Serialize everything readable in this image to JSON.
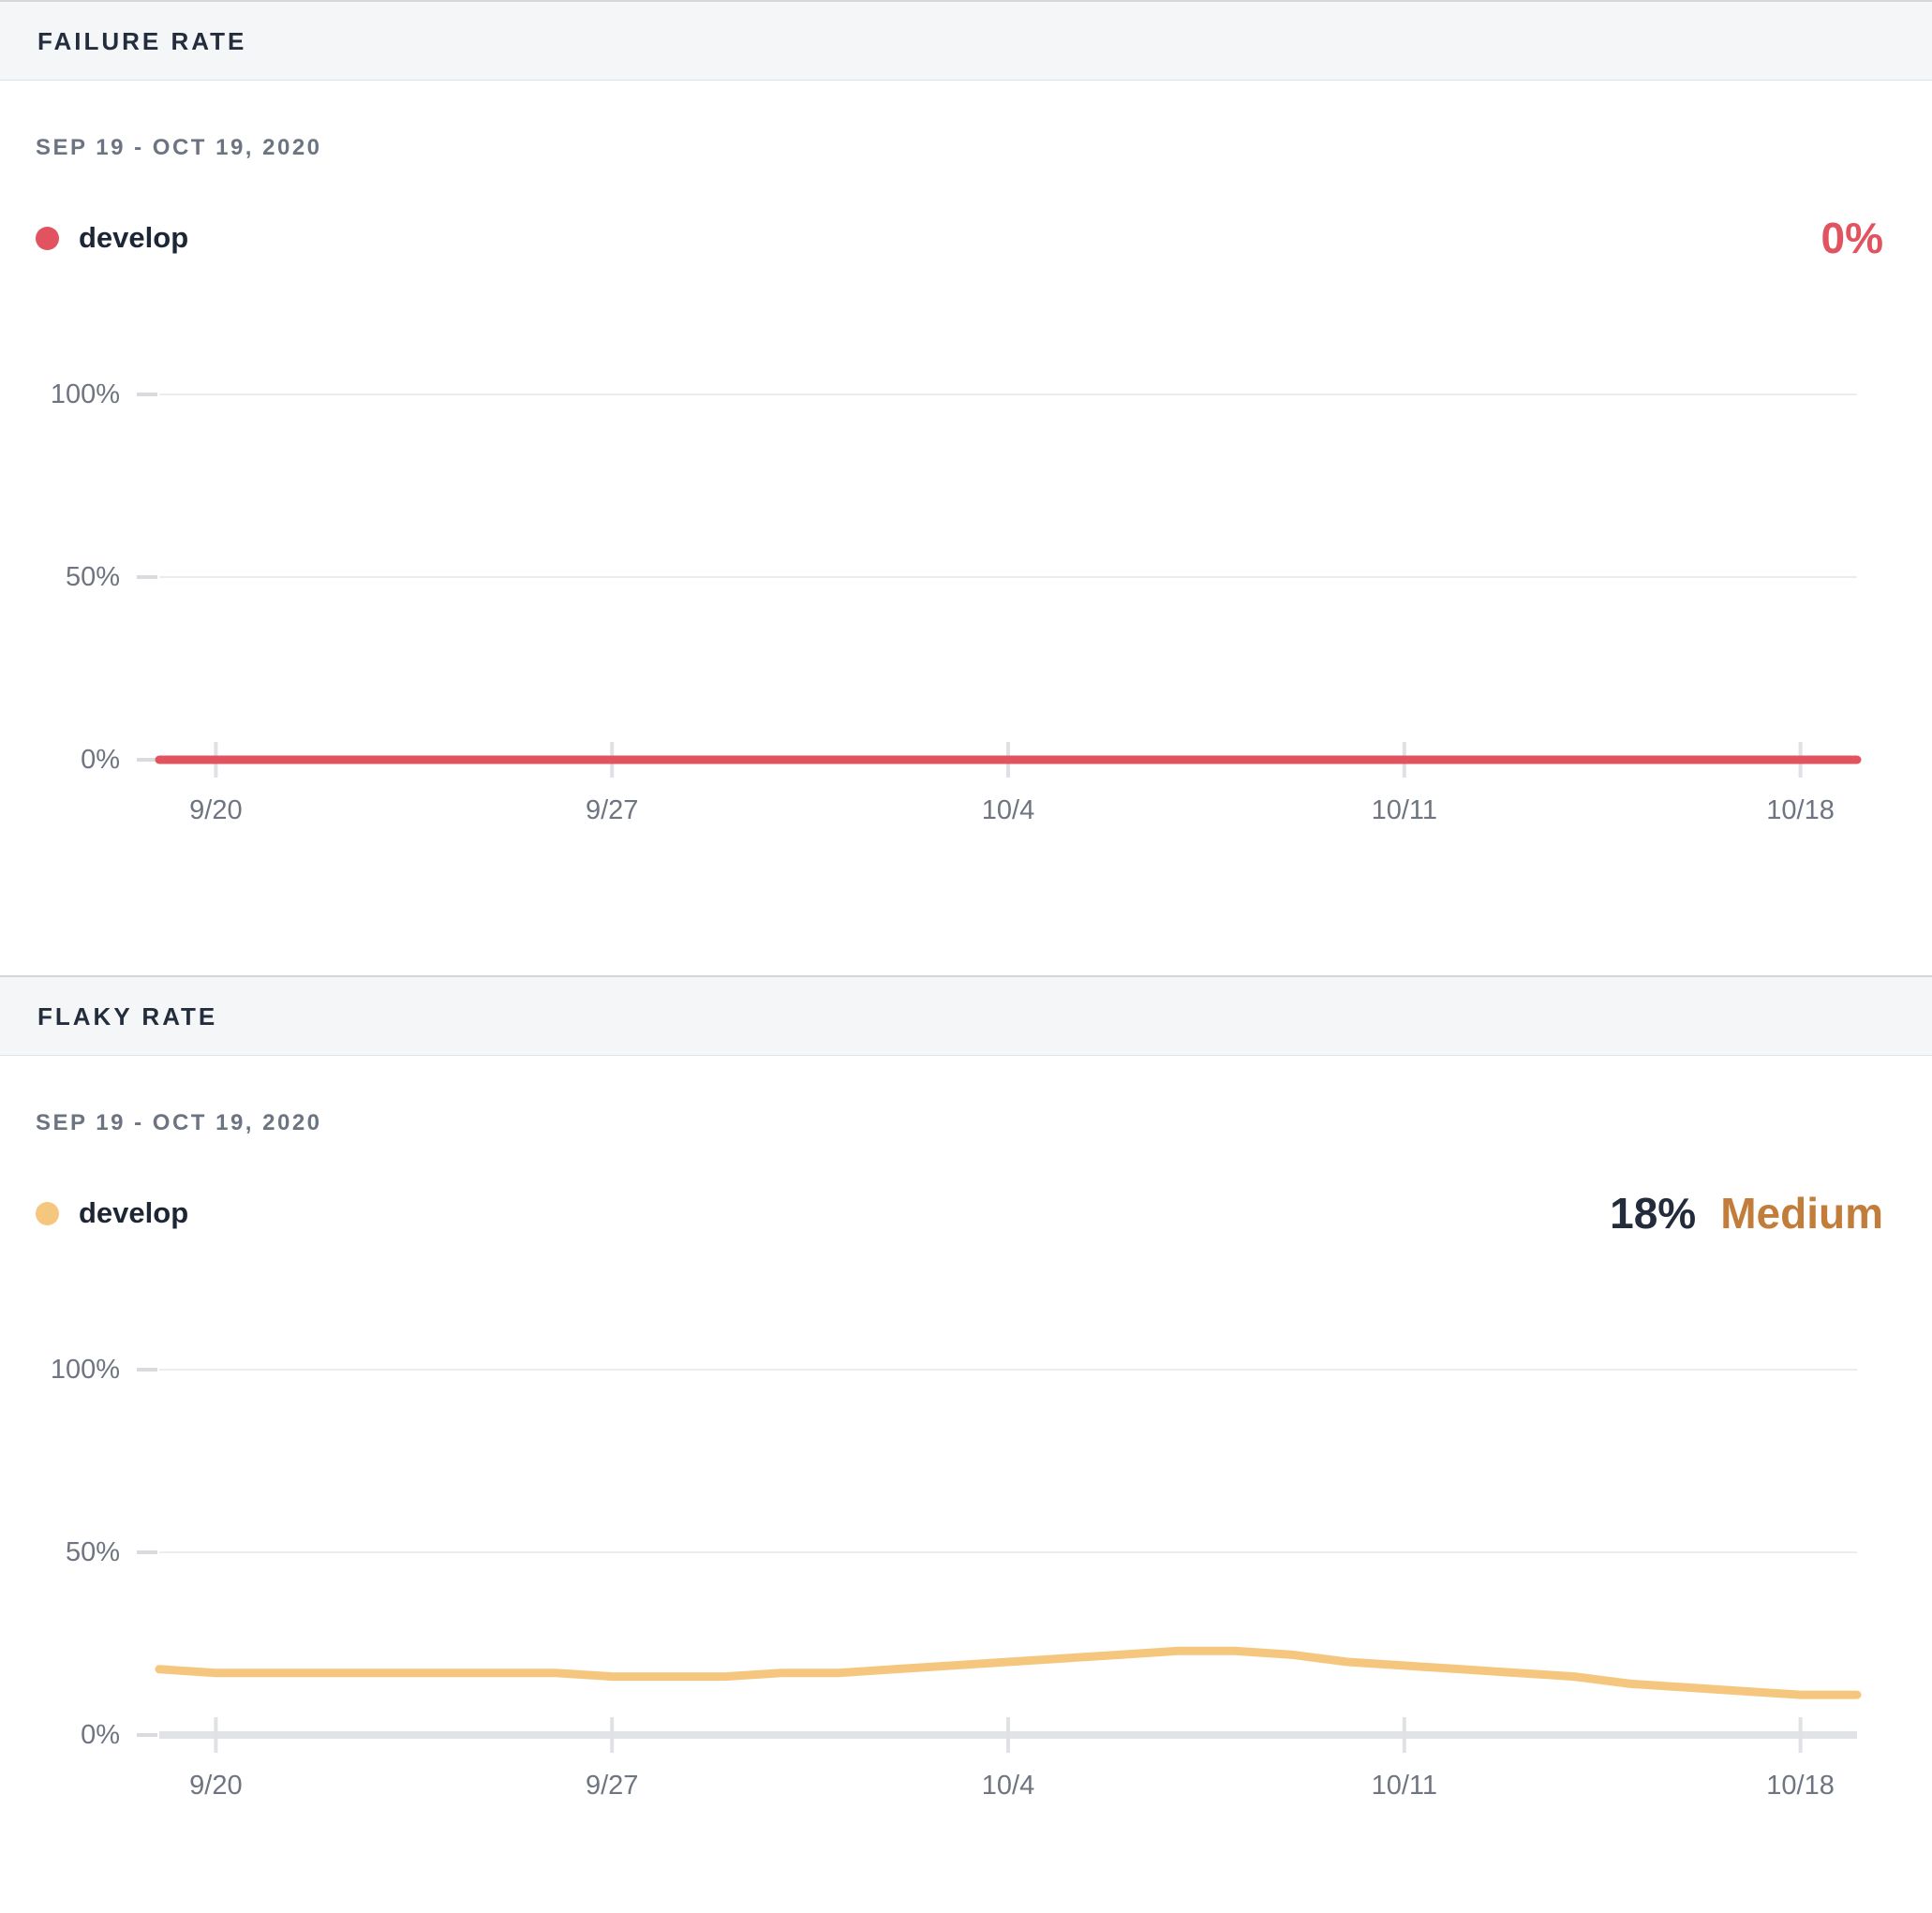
{
  "sections": [
    {
      "header": "FAILURE RATE",
      "date_range": "SEP 19 - OCT 19, 2020",
      "legend": {
        "branch": "develop",
        "color": "#e0535f"
      },
      "value_label": "0%",
      "value_color": "#e0535f"
    },
    {
      "header": "FLAKY RATE",
      "date_range": "SEP 19 - OCT 19, 2020",
      "legend": {
        "branch": "develop",
        "color": "#f5c77e"
      },
      "value_label": "18%",
      "value_color": "#222c3c",
      "severity_label": "Medium",
      "severity_color": "#c27d3a"
    }
  ],
  "chart_data": [
    {
      "type": "line",
      "title": "Failure Rate",
      "subtitle": "Sep 19 - Oct 19, 2020",
      "x": [
        "9/19",
        "9/20",
        "9/21",
        "9/22",
        "9/23",
        "9/24",
        "9/25",
        "9/26",
        "9/27",
        "9/28",
        "9/29",
        "9/30",
        "10/1",
        "10/2",
        "10/3",
        "10/4",
        "10/5",
        "10/6",
        "10/7",
        "10/8",
        "10/9",
        "10/10",
        "10/11",
        "10/12",
        "10/13",
        "10/14",
        "10/15",
        "10/16",
        "10/17",
        "10/18",
        "10/19"
      ],
      "series": [
        {
          "name": "develop",
          "color": "#e0535f",
          "values": [
            0,
            0,
            0,
            0,
            0,
            0,
            0,
            0,
            0,
            0,
            0,
            0,
            0,
            0,
            0,
            0,
            0,
            0,
            0,
            0,
            0,
            0,
            0,
            0,
            0,
            0,
            0,
            0,
            0,
            0,
            0
          ]
        }
      ],
      "summary_value": "0%",
      "ylim": [
        0,
        100
      ],
      "y_tick_labels": [
        "100%",
        "50%",
        "0%"
      ],
      "y_tick_values": [
        100,
        50,
        0
      ],
      "x_tick_labels": [
        "9/20",
        "9/27",
        "10/4",
        "10/11",
        "10/18"
      ],
      "x_tick_indices": [
        1,
        8,
        15,
        22,
        29
      ],
      "grid": "horizontal",
      "legend_position": "top-left"
    },
    {
      "type": "line",
      "title": "Flaky Rate",
      "subtitle": "Sep 19 - Oct 19, 2020",
      "x": [
        "9/19",
        "9/20",
        "9/21",
        "9/22",
        "9/23",
        "9/24",
        "9/25",
        "9/26",
        "9/27",
        "9/28",
        "9/29",
        "9/30",
        "10/1",
        "10/2",
        "10/3",
        "10/4",
        "10/5",
        "10/6",
        "10/7",
        "10/8",
        "10/9",
        "10/10",
        "10/11",
        "10/12",
        "10/13",
        "10/14",
        "10/15",
        "10/16",
        "10/17",
        "10/18",
        "10/19"
      ],
      "series": [
        {
          "name": "develop",
          "color": "#f5c77e",
          "values": [
            18,
            17,
            17,
            17,
            17,
            17,
            17,
            17,
            16,
            16,
            16,
            17,
            17,
            18,
            19,
            20,
            21,
            22,
            23,
            23,
            22,
            20,
            19,
            18,
            17,
            16,
            14,
            13,
            12,
            11,
            11
          ]
        }
      ],
      "summary_value": "18%",
      "severity": "Medium",
      "ylim": [
        0,
        100
      ],
      "y_tick_labels": [
        "100%",
        "50%",
        "0%"
      ],
      "y_tick_values": [
        100,
        50,
        0
      ],
      "x_tick_labels": [
        "9/20",
        "9/27",
        "10/4",
        "10/11",
        "10/18"
      ],
      "x_tick_indices": [
        1,
        8,
        15,
        22,
        29
      ],
      "grid": "horizontal",
      "legend_position": "top-left"
    }
  ],
  "theme": {
    "grid_color": "#ececee",
    "baseline_color": "#e2e3e6",
    "tick_color": "#dfe1e5",
    "stub_color": "#d9dbdf",
    "header_bg": "#f5f6f8"
  }
}
